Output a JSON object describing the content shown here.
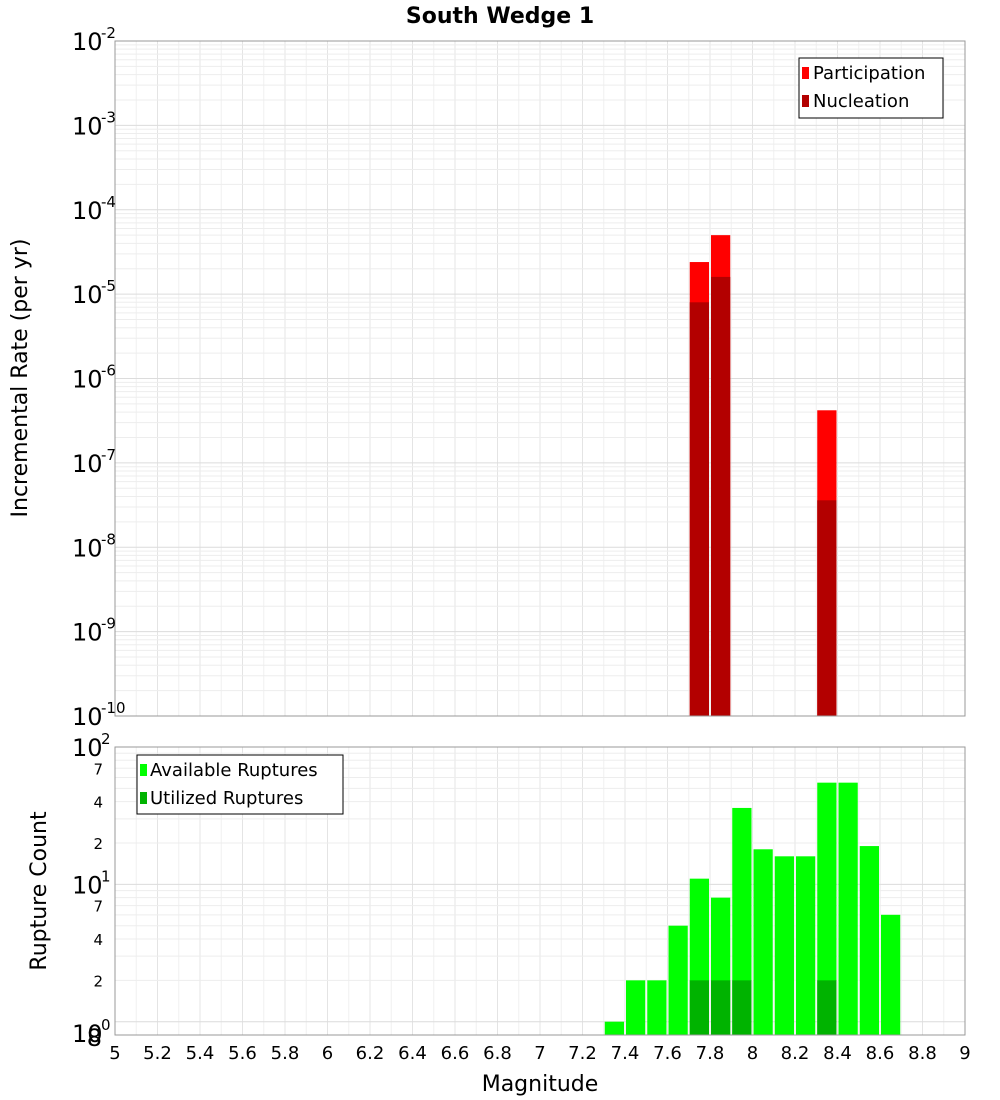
{
  "chart_data": [
    {
      "type": "bar",
      "title": "South Wedge 1",
      "xlabel": "",
      "ylabel": "Incremental Rate (per yr)",
      "y_scale": "log",
      "ylim": [
        1e-10,
        0.01
      ],
      "xlim": [
        5,
        9
      ],
      "y_tick_labels": [
        {
          "base": "10",
          "exp": "-2"
        },
        {
          "base": "10",
          "exp": "-3"
        },
        {
          "base": "10",
          "exp": "-4"
        },
        {
          "base": "10",
          "exp": "-5"
        },
        {
          "base": "10",
          "exp": "-6"
        },
        {
          "base": "10",
          "exp": "-7"
        },
        {
          "base": "10",
          "exp": "-8"
        },
        {
          "base": "10",
          "exp": "-9"
        },
        {
          "base": "10",
          "exp": "-10"
        }
      ],
      "bar_width": 0.1,
      "grid": true,
      "legend_position": "top-right",
      "series": [
        {
          "name": "Participation",
          "color": "#ff0000",
          "x": [
            7.75,
            7.85,
            8.35
          ],
          "values": [
            2.4e-05,
            5e-05,
            4.2e-07
          ]
        },
        {
          "name": "Nucleation",
          "color": "#b30000",
          "x": [
            7.75,
            7.85,
            8.35
          ],
          "values": [
            8e-06,
            1.6e-05,
            3.6e-08
          ]
        }
      ]
    },
    {
      "type": "bar",
      "xlabel": "Magnitude",
      "ylabel": "Rupture Count",
      "y_scale": "log",
      "ylim": [
        0.8,
        100
      ],
      "xlim": [
        5,
        9
      ],
      "x_tick_labels": [
        "5",
        "5.2",
        "5.4",
        "5.6",
        "5.8",
        "6",
        "6.2",
        "6.4",
        "6.6",
        "6.8",
        "7",
        "7.2",
        "7.4",
        "7.6",
        "7.8",
        "8",
        "8.2",
        "8.4",
        "8.6",
        "8.8",
        "9"
      ],
      "y_tick_labels": [
        {
          "base": "10",
          "exp": "2"
        },
        {
          "base": "10",
          "exp": "1"
        },
        {
          "base": "10",
          "exp": "0"
        }
      ],
      "y_minor_tick_labels": [
        "7",
        "4",
        "2",
        "7",
        "4",
        "2",
        "8"
      ],
      "bar_width": 0.1,
      "grid": true,
      "legend_position": "top-left",
      "series": [
        {
          "name": "Available Ruptures",
          "color": "#00ff00",
          "x": [
            7.35,
            7.45,
            7.55,
            7.65,
            7.75,
            7.85,
            7.95,
            8.05,
            8.15,
            8.25,
            8.35,
            8.45,
            8.55,
            8.65
          ],
          "values": [
            1,
            2,
            2,
            5,
            11,
            8,
            36,
            18,
            16,
            16,
            55,
            55,
            19,
            6
          ]
        },
        {
          "name": "Utilized Ruptures",
          "color": "#00b300",
          "x": [
            7.75,
            7.85,
            7.95,
            8.35
          ],
          "values": [
            2,
            2,
            2,
            2
          ]
        }
      ]
    }
  ]
}
